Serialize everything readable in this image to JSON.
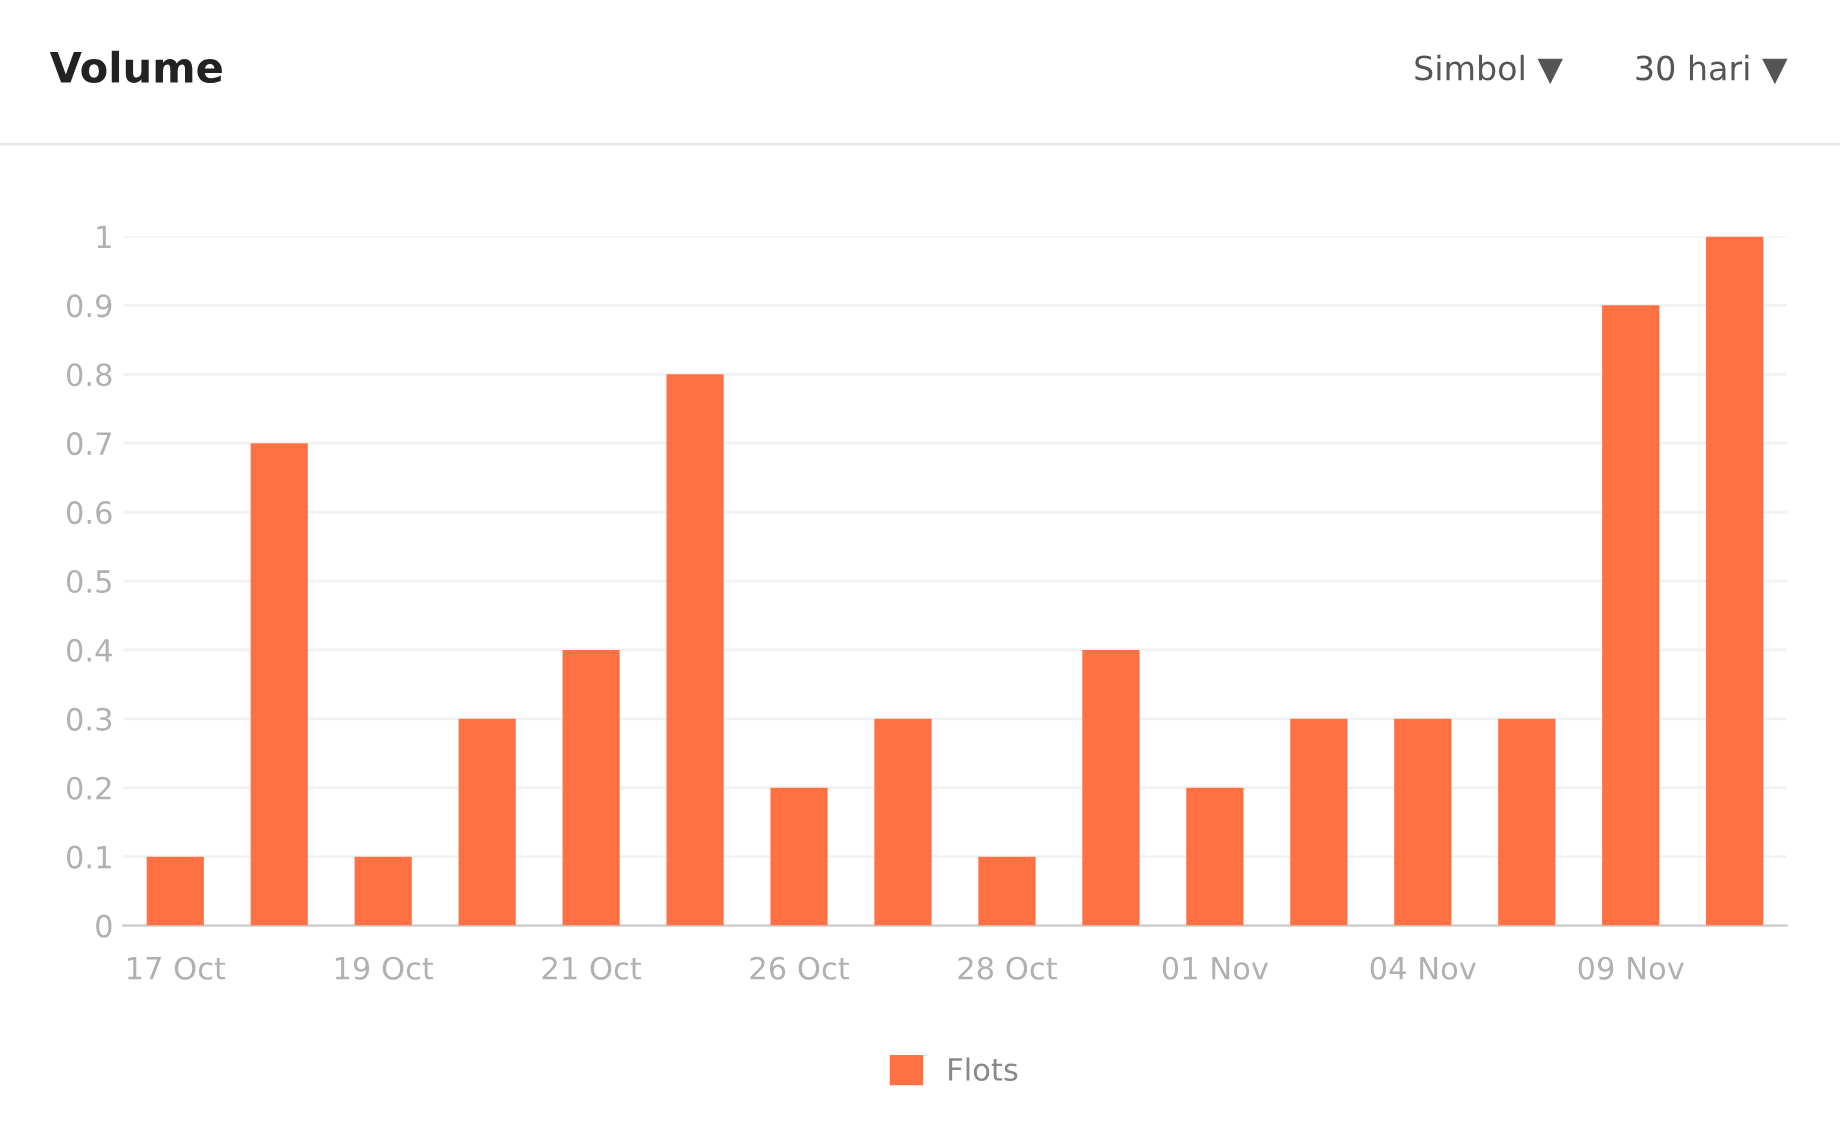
{
  "chart_data": {
    "type": "bar",
    "title": "Volume",
    "annotations": [
      "Simbol ▼",
      "30 hari ▼"
    ],
    "categories": [
      "17 Oct",
      null,
      "19 Oct",
      null,
      "21 Oct",
      null,
      "26 Oct",
      null,
      "28 Oct",
      null,
      "01 Nov",
      null,
      "04 Nov",
      null,
      "09 Nov",
      null
    ],
    "series": [
      {
        "name": "Flots",
        "color": "#ff7043",
        "values": [
          0.1,
          0.7,
          0.1,
          0.3,
          0.4,
          0.8,
          0.2,
          0.3,
          0.1,
          0.4,
          0.2,
          0.3,
          0.3,
          0.3,
          0.9,
          1
        ]
      }
    ],
    "ylim": [
      0,
      1
    ],
    "yticks": [
      0,
      0.1,
      0.2,
      0.3,
      0.4,
      0.5,
      0.6,
      0.7,
      0.8,
      0.9,
      1
    ],
    "grid": "y",
    "legend": "bottom"
  }
}
